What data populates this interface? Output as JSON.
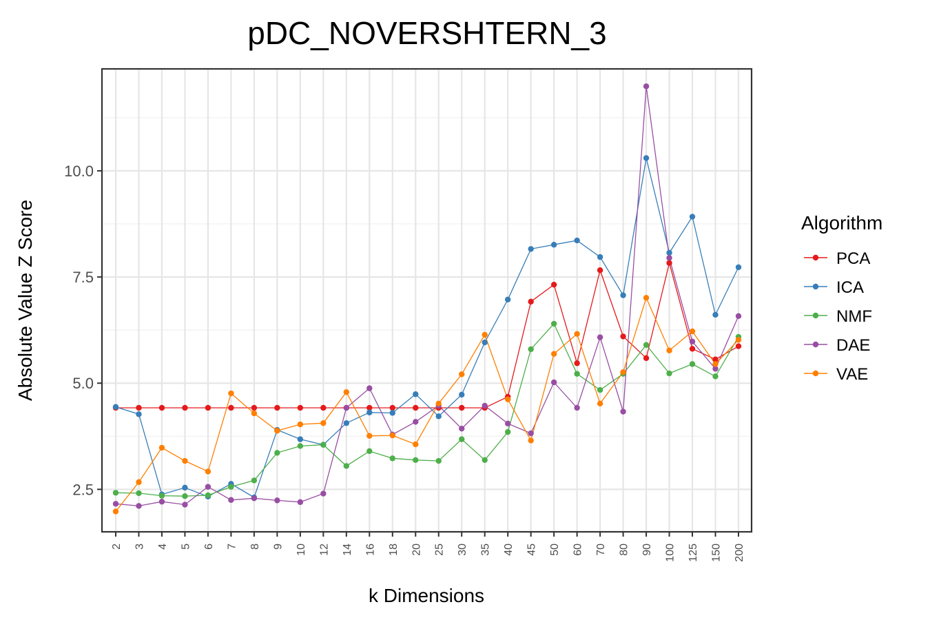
{
  "chart_data": {
    "type": "line",
    "title": "pDC_NOVERSHTERN_3",
    "xlabel": "k Dimensions",
    "ylabel": "Absolute Value Z Score",
    "categories": [
      "2",
      "3",
      "4",
      "5",
      "6",
      "7",
      "8",
      "9",
      "10",
      "12",
      "14",
      "16",
      "18",
      "20",
      "25",
      "30",
      "35",
      "40",
      "45",
      "50",
      "60",
      "70",
      "80",
      "90",
      "100",
      "125",
      "150",
      "200"
    ],
    "ylim": [
      1.5,
      12.4
    ],
    "yticks": [
      2.5,
      5.0,
      7.5,
      10.0
    ],
    "ytick_labels": [
      "2.5",
      "5.0",
      "7.5",
      "10.0"
    ],
    "grid": true,
    "legend": {
      "title": "Algorithm",
      "placement": "right"
    },
    "series": [
      {
        "name": "PCA",
        "color": "#e41a1c",
        "values": [
          4.42,
          4.42,
          4.42,
          4.42,
          4.42,
          4.42,
          4.42,
          4.42,
          4.42,
          4.42,
          4.42,
          4.42,
          4.42,
          4.42,
          4.42,
          4.42,
          4.42,
          4.68,
          6.92,
          7.32,
          5.47,
          7.66,
          6.1,
          5.59,
          7.83,
          5.81,
          5.56,
          5.87
        ]
      },
      {
        "name": "ICA",
        "color": "#377eb8",
        "values": [
          4.44,
          4.27,
          2.38,
          2.54,
          2.33,
          2.63,
          2.31,
          3.9,
          3.68,
          3.55,
          4.06,
          4.31,
          4.3,
          4.74,
          4.22,
          4.73,
          5.96,
          6.97,
          8.16,
          8.26,
          8.36,
          7.97,
          7.07,
          10.3,
          8.07,
          8.92,
          6.61,
          7.73
        ]
      },
      {
        "name": "NMF",
        "color": "#4daf4a",
        "values": [
          2.42,
          2.41,
          2.35,
          2.34,
          2.36,
          2.56,
          2.71,
          3.36,
          3.52,
          3.55,
          3.05,
          3.4,
          3.23,
          3.19,
          3.17,
          3.68,
          3.19,
          3.85,
          5.8,
          6.4,
          5.22,
          4.84,
          5.22,
          5.9,
          5.23,
          5.45,
          5.16,
          6.09
        ]
      },
      {
        "name": "DAE",
        "color": "#984ea3",
        "values": [
          2.16,
          2.11,
          2.21,
          2.14,
          2.56,
          2.25,
          2.29,
          2.24,
          2.2,
          2.4,
          4.42,
          4.88,
          3.79,
          4.09,
          4.47,
          3.93,
          4.47,
          4.05,
          3.82,
          5.02,
          4.42,
          6.08,
          4.33,
          11.99,
          7.95,
          5.98,
          5.34,
          6.58
        ]
      },
      {
        "name": "VAE",
        "color": "#ff7f00",
        "values": [
          1.98,
          2.67,
          3.48,
          3.17,
          2.92,
          4.76,
          4.29,
          3.88,
          4.03,
          4.06,
          4.79,
          3.76,
          3.77,
          3.56,
          4.52,
          5.21,
          6.14,
          4.62,
          3.65,
          5.69,
          6.16,
          4.52,
          5.26,
          7.01,
          5.77,
          6.22,
          5.45,
          6.02
        ]
      }
    ]
  }
}
